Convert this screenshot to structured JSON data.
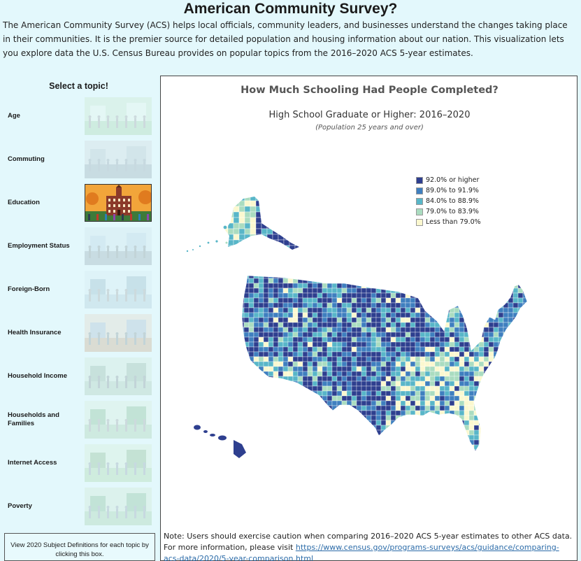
{
  "page": {
    "title": "American Community Survey?",
    "intro": "The American Community Survey (ACS) helps local officials, community leaders, and businesses understand the changes taking place in their communities. It is the premier source for detailed population and housing information about our nation. This visualization lets you explore data the U.S. Census Bureau provides on popular topics from the 2016–2020 ACS 5-year estimates."
  },
  "sidebar": {
    "select_label": "Select a topic!",
    "topics": [
      {
        "label": "Age",
        "active": false
      },
      {
        "label": "Commuting",
        "active": false
      },
      {
        "label": "Education",
        "active": true
      },
      {
        "label": "Employment Status",
        "active": false
      },
      {
        "label": "Foreign-Born",
        "active": false
      },
      {
        "label": "Health Insurance",
        "active": false
      },
      {
        "label": "Household Income",
        "active": false
      },
      {
        "label": "Households and Families",
        "active": false
      },
      {
        "label": "Internet Access",
        "active": false
      },
      {
        "label": "Poverty",
        "active": false
      }
    ],
    "definitions_text": "View 2020 Subject Definitions for each topic by clicking this box."
  },
  "map": {
    "title": "How Much Schooling Had People Completed?",
    "subtitle": "High School Graduate or Higher: 2016–2020",
    "universe": "(Population 25 years and over)",
    "legend": [
      {
        "label": "92.0% or higher",
        "color": "#2e3f8f"
      },
      {
        "label": "89.0% to 91.9%",
        "color": "#3f7fbf"
      },
      {
        "label": "84.0% to 88.9%",
        "color": "#58b6c8"
      },
      {
        "label": "79.0% to 83.9%",
        "color": "#aadcc0"
      },
      {
        "label": "Less than 79.0%",
        "color": "#fbf8cf"
      }
    ]
  },
  "note": {
    "text": "Note: Users should exercise caution when comparing 2016–2020 ACS 5-year estimates to other ACS data. For more information, please visit ",
    "link": "https://www.census.gov/programs-surveys/acs/guidance/comparing-acs-data/2020/5-year-comparison.html"
  }
}
